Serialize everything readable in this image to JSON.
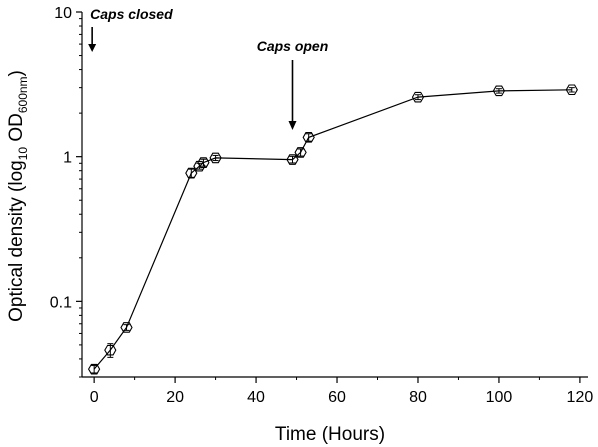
{
  "chart_data": {
    "type": "line",
    "title": "",
    "xlabel": "Time (Hours)",
    "ylabel": {
      "main": "Optical density (log",
      "sub1": "10",
      "mid": " OD",
      "sub2": "600nm",
      "end": ")"
    },
    "xlim": [
      -3,
      122
    ],
    "ylim": [
      0.03,
      10
    ],
    "y_scale": "log",
    "x_ticks": [
      0,
      20,
      40,
      60,
      80,
      100,
      120
    ],
    "x_tick_labels": [
      "0",
      "20",
      "40",
      "60",
      "80",
      "100",
      "120"
    ],
    "y_ticks": [
      0.1,
      1,
      10
    ],
    "y_tick_labels": [
      "0.1",
      "1",
      "10"
    ],
    "grid": false,
    "marker": "hexagon-open",
    "series": [
      {
        "x": [
          0,
          4,
          8,
          24,
          26,
          27,
          30,
          49,
          51,
          53,
          80,
          100,
          118
        ],
        "y": [
          0.034,
          0.046,
          0.066,
          0.77,
          0.86,
          0.91,
          0.98,
          0.955,
          1.07,
          1.36,
          2.58,
          2.85,
          2.9
        ],
        "yerr": [
          0.002,
          0.005,
          0.003,
          0.05,
          0.04,
          0.05,
          0.04,
          0.05,
          0.06,
          0.08,
          0.1,
          0.1,
          0.1
        ]
      }
    ],
    "annotations": [
      {
        "text": "Caps closed",
        "x": 0
      },
      {
        "text": "Caps open",
        "x": 49
      }
    ]
  }
}
